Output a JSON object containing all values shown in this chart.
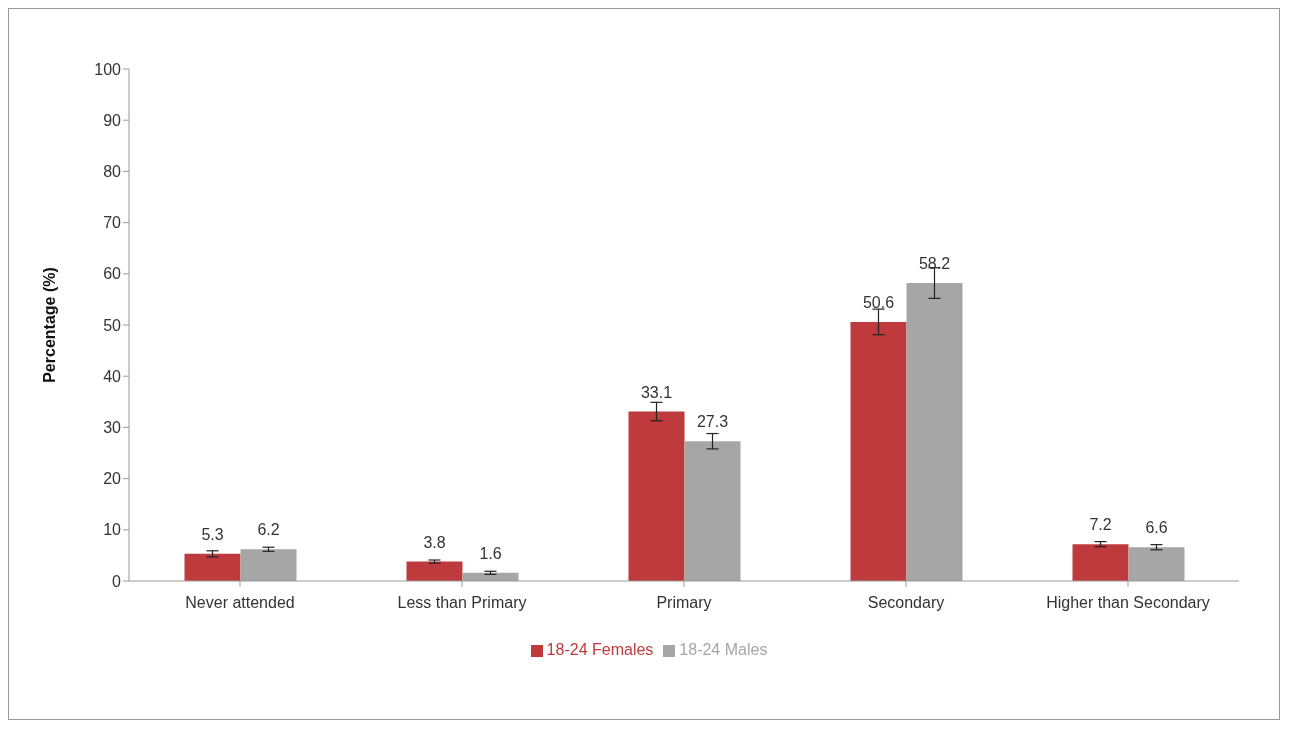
{
  "chart_data": {
    "type": "bar",
    "ylabel": "Percentage (%)",
    "categories": [
      "Never attended",
      "Less than Primary",
      "Primary",
      "Secondary",
      "Higher than Secondary"
    ],
    "series": [
      {
        "name": "18-24 Females",
        "color": "#be3a3c",
        "values": [
          5.3,
          3.8,
          33.1,
          50.6,
          7.2
        ],
        "errors": [
          0.6,
          0.3,
          1.8,
          2.5,
          0.5
        ]
      },
      {
        "name": "18-24 Males",
        "color": "#a6a6a6",
        "values": [
          6.2,
          1.6,
          27.3,
          58.2,
          6.6
        ],
        "errors": [
          0.4,
          0.3,
          1.5,
          3.0,
          0.5
        ]
      }
    ],
    "ylim": [
      0,
      100
    ],
    "yticks": [
      0,
      10,
      20,
      30,
      40,
      50,
      60,
      70,
      80,
      90,
      100
    ],
    "grid": false,
    "legend": "bottom",
    "data_labels": true
  }
}
